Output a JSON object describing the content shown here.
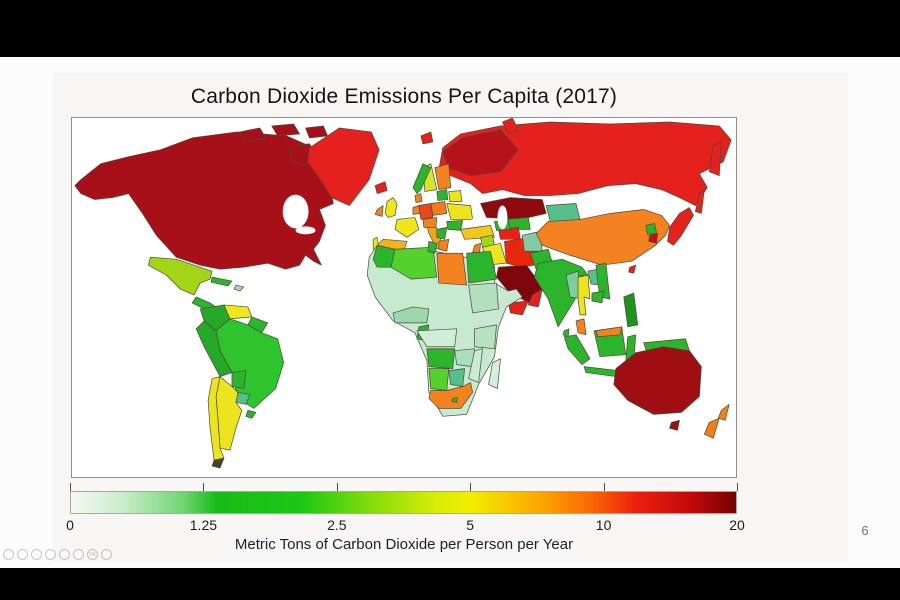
{
  "slide": {
    "title": "Carbon Dioxide Emissions Per Capita (2017)",
    "page_number": "6"
  },
  "chart_data": {
    "type": "choropleth-map",
    "title": "Carbon Dioxide Emissions Per Capita (2017)",
    "units": "metric tons CO2 per person per year",
    "colorbar": {
      "label": "Metric Tons of Carbon Dioxide per Person per Year",
      "scale": "doubling per tick (log2)",
      "ticks": [
        {
          "label": "0",
          "pos": 0.0
        },
        {
          "label": "1.25",
          "pos": 0.2
        },
        {
          "label": "2.5",
          "pos": 0.4
        },
        {
          "label": "5",
          "pos": 0.6
        },
        {
          "label": "10",
          "pos": 0.8
        },
        {
          "label": "20",
          "pos": 1.0
        }
      ],
      "gradient_stops": [
        {
          "pos": 0.0,
          "color": "#f4faf2"
        },
        {
          "pos": 0.08,
          "color": "#c8ecca"
        },
        {
          "pos": 0.17,
          "color": "#6fd46f"
        },
        {
          "pos": 0.22,
          "color": "#18bb18"
        },
        {
          "pos": 0.35,
          "color": "#1ec814"
        },
        {
          "pos": 0.45,
          "color": "#84dc0c"
        },
        {
          "pos": 0.55,
          "color": "#d8ec04"
        },
        {
          "pos": 0.6,
          "color": "#f2ee00"
        },
        {
          "pos": 0.7,
          "color": "#fbaa00"
        },
        {
          "pos": 0.78,
          "color": "#fa6a04"
        },
        {
          "pos": 0.85,
          "color": "#ec200c"
        },
        {
          "pos": 0.93,
          "color": "#c40a0a"
        },
        {
          "pos": 1.0,
          "color": "#740202"
        }
      ]
    },
    "regions": {
      "north-america": {
        "color": "#a81019",
        "value": 16
      },
      "arctic-islands": {
        "color": "#a81019",
        "value": 16
      },
      "greenland": {
        "color": "#e4211c",
        "value": 10
      },
      "svalbard": {
        "color": "#e4211c",
        "value": 10
      },
      "iceland": {
        "color": "#e4211c",
        "value": 10
      },
      "mexico": {
        "color": "#a2d517",
        "value": 3.7
      },
      "central-america": {
        "color": "#2db42d",
        "value": 2
      },
      "cuba": {
        "color": "#2db42d",
        "value": 2
      },
      "hispaniola": {
        "color": "#9fd8b0",
        "value": 1
      },
      "colombia": {
        "color": "#28a828",
        "value": 1.8
      },
      "venezuela": {
        "color": "#efe719",
        "value": 4.5
      },
      "guyanas": {
        "color": "#2db42d",
        "value": 2
      },
      "brazil": {
        "color": "#2ec42e",
        "value": 2.2
      },
      "peru": {
        "color": "#28a828",
        "value": 1.8
      },
      "bolivia": {
        "color": "#2db42d",
        "value": 2
      },
      "paraguay": {
        "color": "#57bf8c",
        "value": 1
      },
      "uruguay": {
        "color": "#2db42d",
        "value": 2
      },
      "argentina": {
        "color": "#ece41e",
        "value": 4.2
      },
      "chile": {
        "color": "#ece41e",
        "value": 4.4
      },
      "southern-tip": {
        "color": "#44441e",
        "value": 0
      },
      "norway": {
        "color": "#2db42d",
        "value": 2.2
      },
      "sweden": {
        "color": "#d8e42a",
        "value": 4
      },
      "finland": {
        "color": "#f58220",
        "value": 7.5
      },
      "denmark": {
        "color": "#f58220",
        "value": 7
      },
      "uk": {
        "color": "#efe719",
        "value": 5.5
      },
      "ireland": {
        "color": "#f58220",
        "value": 7.5
      },
      "benelux": {
        "color": "#f58220",
        "value": 8
      },
      "germany": {
        "color": "#e8481a",
        "value": 9
      },
      "poland": {
        "color": "#f07c1e",
        "value": 8
      },
      "france": {
        "color": "#efe719",
        "value": 4.8
      },
      "spain": {
        "color": "#f0b41e",
        "value": 5.8
      },
      "portugal": {
        "color": "#efe719",
        "value": 5
      },
      "italy": {
        "color": "#f2a61a",
        "value": 5.8
      },
      "czech-austria": {
        "color": "#f58220",
        "value": 8
      },
      "balkans": {
        "color": "#2db42d",
        "value": 2.5
      },
      "greece": {
        "color": "#f58220",
        "value": 7
      },
      "ukraine": {
        "color": "#ece41e",
        "value": 4.5
      },
      "romania": {
        "color": "#2db42d",
        "value": 2.5
      },
      "baltics": {
        "color": "#2db42d",
        "value": 2.5
      },
      "belarus": {
        "color": "#ece41e",
        "value": 4.5
      },
      "russia": {
        "color": "#e4211c",
        "value": 11
      },
      "russia-northwest": {
        "color": "#b5121b",
        "value": 14
      },
      "novaya-zemlya": {
        "color": "#e4211c",
        "value": 11
      },
      "kamchatka": {
        "color": "#e4211c",
        "value": 11
      },
      "sakhalin": {
        "color": "#e4211c",
        "value": 11
      },
      "kazakhstan": {
        "color": "#8f0a0f",
        "value": 15
      },
      "uzbekistan": {
        "color": "#2db42d",
        "value": 2.5
      },
      "turkmenistan": {
        "color": "#e4211c",
        "value": 11
      },
      "caucasus": {
        "color": "#2db42d",
        "value": 2.5
      },
      "turkey": {
        "color": "#f0c81a",
        "value": 5
      },
      "syria": {
        "color": "#a2d517",
        "value": 3.5
      },
      "israel-jordan": {
        "color": "#f58220",
        "value": 7
      },
      "iraq": {
        "color": "#ece41e",
        "value": 4.5
      },
      "iran": {
        "color": "#e8280e",
        "value": 9
      },
      "saudi-arabia": {
        "color": "#7e050c",
        "value": 19
      },
      "yemen": {
        "color": "#e4211c",
        "value": 10
      },
      "oman": {
        "color": "#e4211c",
        "value": 11
      },
      "morocco": {
        "color": "#2db42d",
        "value": 2
      },
      "algeria": {
        "color": "#54d12c",
        "value": 3.3
      },
      "tunisia": {
        "color": "#2db42d",
        "value": 2.5
      },
      "libya": {
        "color": "#f58220",
        "value": 8
      },
      "egypt": {
        "color": "#2db42d",
        "value": 2.2
      },
      "africa-base": {
        "color": "#c6e9cf",
        "value": 0.3
      },
      "sudan": {
        "color": "#b2e0bf",
        "value": 0.4
      },
      "nigeria-ghana": {
        "color": "#9cd8ae",
        "value": 0.6
      },
      "drc": {
        "color": "#cfeed8",
        "value": 0.2
      },
      "east-africa": {
        "color": "#b7e2c2",
        "value": 0.3
      },
      "zambia-zimbabwe": {
        "color": "#a8debc",
        "value": 0.6
      },
      "mozambique": {
        "color": "#c9ebd2",
        "value": 0.3
      },
      "gabon": {
        "color": "#2db42d",
        "value": 2
      },
      "angola": {
        "color": "#2db42d",
        "value": 1.2
      },
      "namibia": {
        "color": "#54d12c",
        "value": 1.6
      },
      "botswana": {
        "color": "#57bf8c",
        "value": 1
      },
      "south-africa": {
        "color": "#f5821f",
        "value": 7.5
      },
      "lesotho": {
        "color": "#2db42d",
        "value": 1.2
      },
      "madagascar": {
        "color": "#d4f0dc",
        "value": 0.2
      },
      "afghanistan": {
        "color": "#82c9a4",
        "value": 0.7
      },
      "pakistan": {
        "color": "#2db42d",
        "value": 1.8
      },
      "india": {
        "color": "#2db42d",
        "value": 1.8
      },
      "sri-lanka": {
        "color": "#2db42d",
        "value": 1
      },
      "bangladesh": {
        "color": "#ece41e",
        "value": 4
      },
      "china": {
        "color": "#f58220",
        "value": 7
      },
      "mongolia": {
        "color": "#57bf8c",
        "value": 1
      },
      "myanmar": {
        "color": "#7ecda0",
        "value": 0.8
      },
      "thailand": {
        "color": "#ece41e",
        "value": 4
      },
      "laos": {
        "color": "#57bf8c",
        "value": 1
      },
      "vietnam": {
        "color": "#2db42d",
        "value": 2
      },
      "cambodia": {
        "color": "#2db42d",
        "value": 2
      },
      "malaysia": {
        "color": "#f58220",
        "value": 7.7
      },
      "indonesia": {
        "color": "#2db42d",
        "value": 2
      },
      "philippines": {
        "color": "#1e941e",
        "value": 1.3
      },
      "new-guinea": {
        "color": "#2db42d",
        "value": 2
      },
      "taiwan": {
        "color": "#e4211c",
        "value": 11
      },
      "japan": {
        "color": "#e4211c",
        "value": 9.5
      },
      "south-korea": {
        "color": "#c50f14",
        "value": 12
      },
      "north-korea": {
        "color": "#2db42d",
        "value": 2
      },
      "australia": {
        "color": "#9e0e12",
        "value": 16
      },
      "tasmania": {
        "color": "#9e0e12",
        "value": 16
      },
      "new-zealand": {
        "color": "#ef7f1a",
        "value": 7.4
      }
    }
  },
  "overlay": {
    "toolbar_icons": [
      {
        "name": "control-1-icon",
        "glyph": ""
      },
      {
        "name": "control-2-icon",
        "glyph": ""
      },
      {
        "name": "control-3-icon",
        "glyph": ""
      },
      {
        "name": "control-4-icon",
        "glyph": ""
      },
      {
        "name": "control-5-icon",
        "glyph": ""
      },
      {
        "name": "control-6-icon",
        "glyph": ""
      },
      {
        "name": "ok-icon",
        "glyph": "OK"
      },
      {
        "name": "control-8-icon",
        "glyph": ""
      }
    ]
  }
}
